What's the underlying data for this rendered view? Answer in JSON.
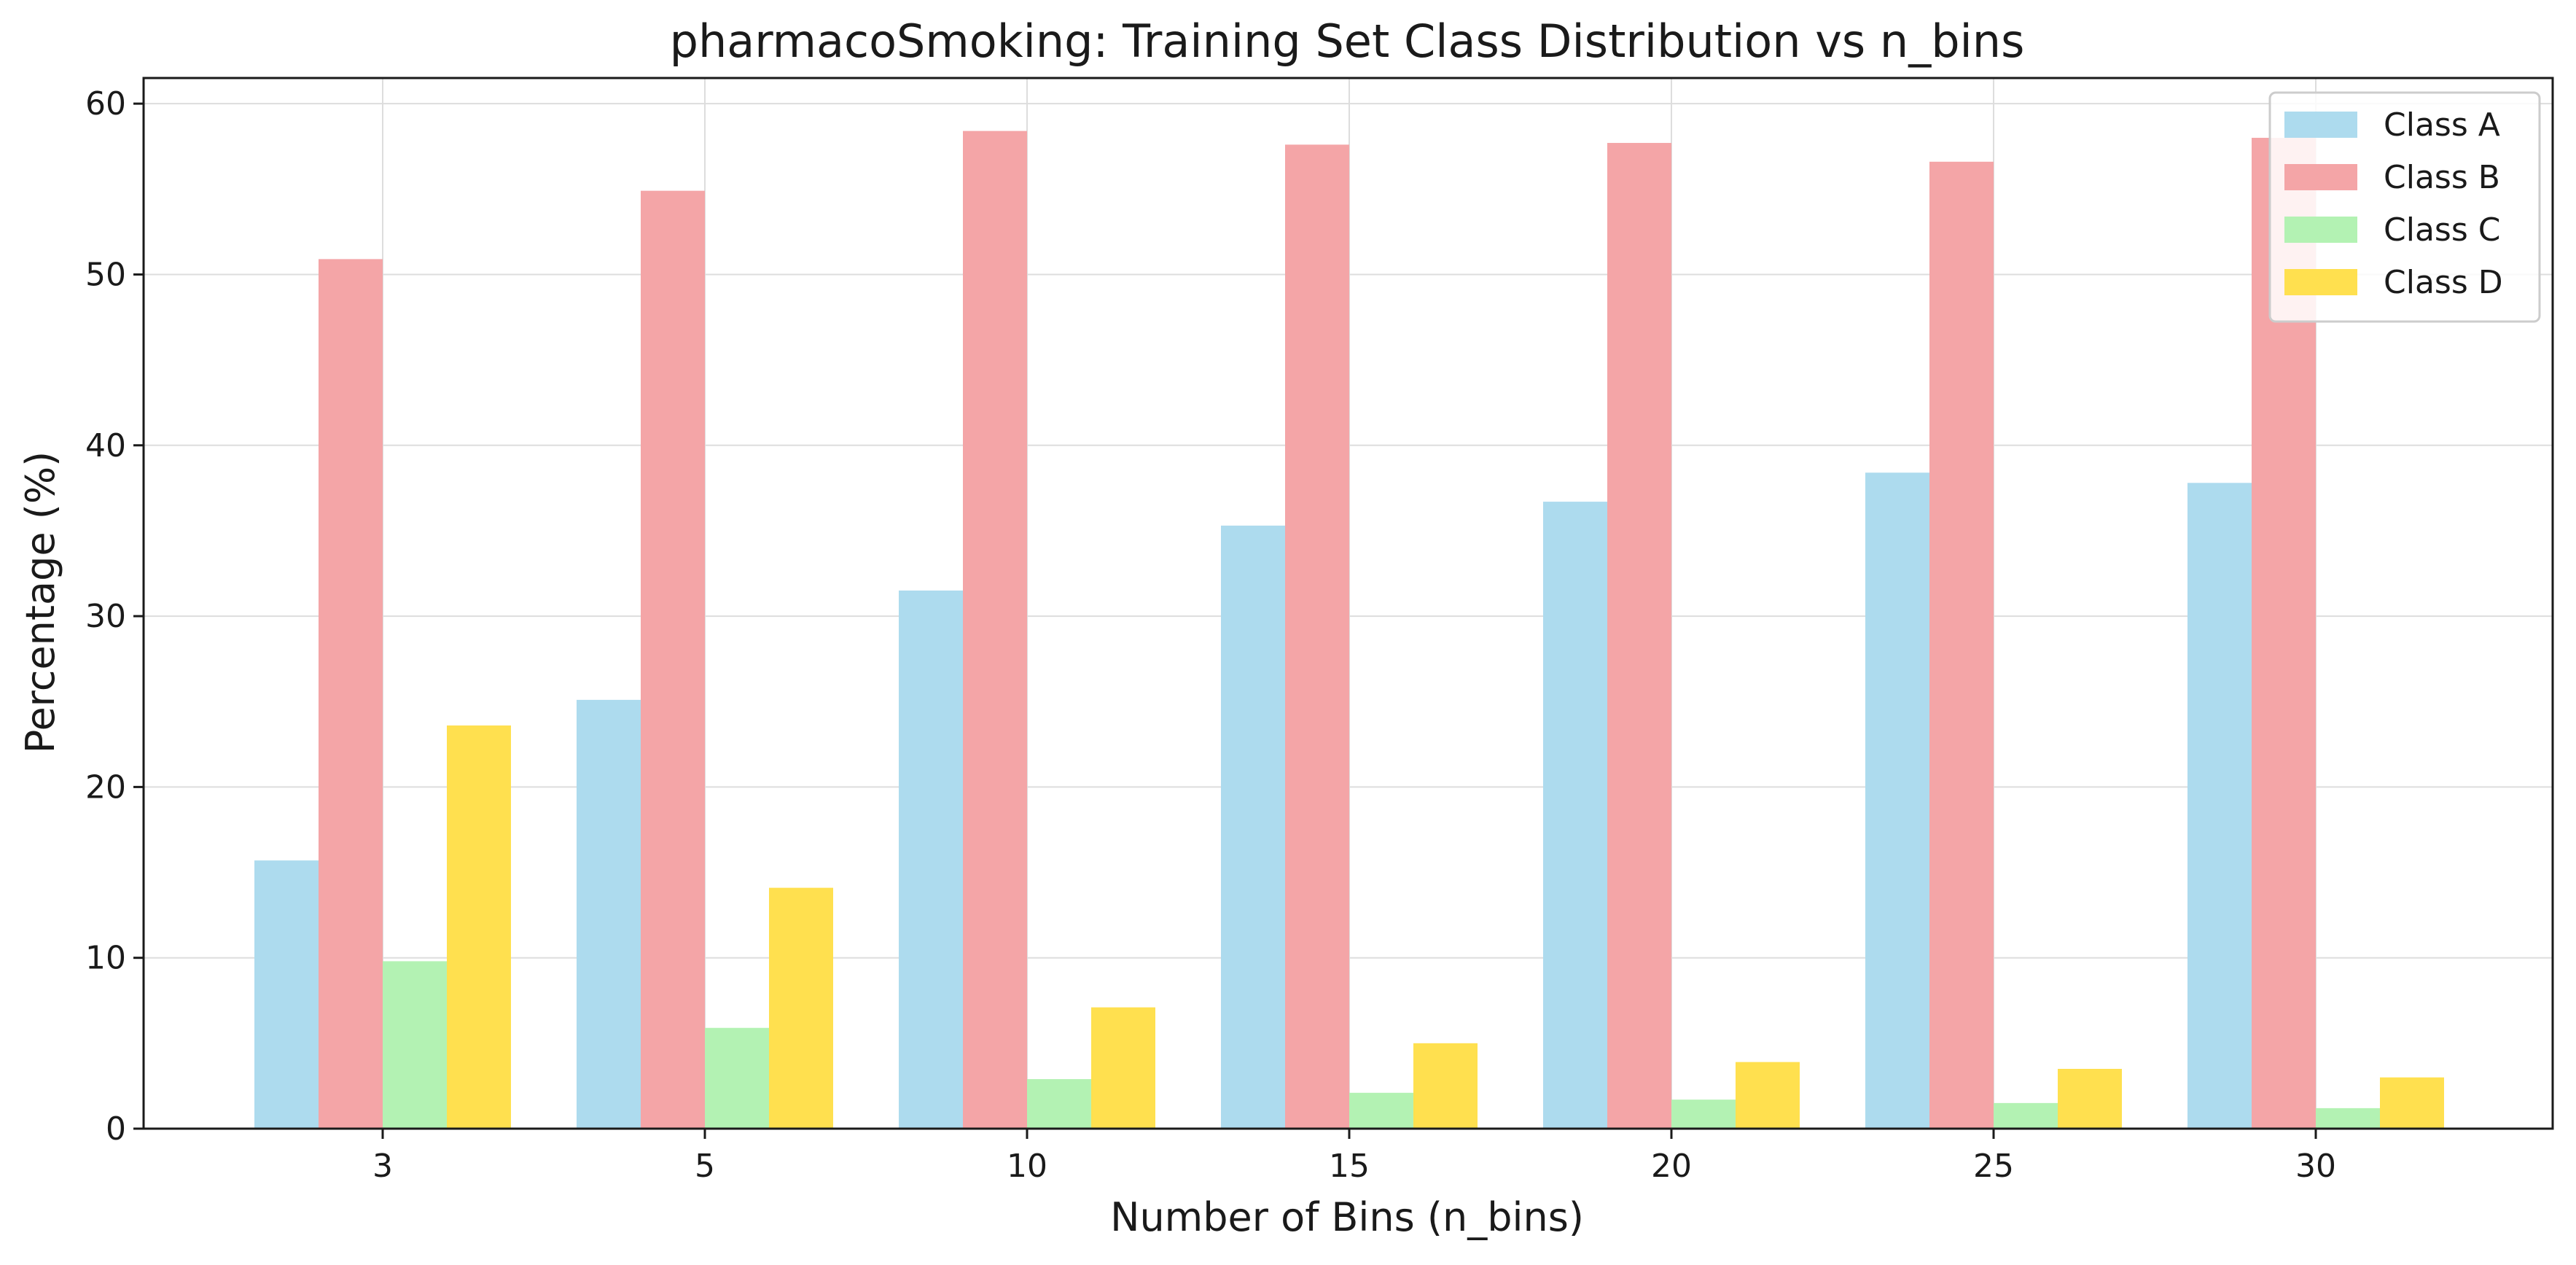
{
  "chart_data": {
    "type": "bar",
    "title": "pharmacoSmoking: Training Set Class Distribution vs n_bins",
    "xlabel": "Number of Bins (n_bins)",
    "ylabel": "Percentage (%)",
    "categories": [
      "3",
      "5",
      "10",
      "15",
      "20",
      "25",
      "30"
    ],
    "ylim": [
      0,
      61.5
    ],
    "yticks": [
      "0",
      "10",
      "20",
      "30",
      "40",
      "50",
      "60"
    ],
    "grid": true,
    "legend_position": "top-right",
    "series": [
      {
        "name": "Class A",
        "color": "#ADDBEE",
        "values": [
          15.7,
          25.1,
          31.5,
          35.3,
          36.7,
          38.4,
          37.8
        ]
      },
      {
        "name": "Class B",
        "color": "#F4A5A7",
        "values": [
          50.9,
          54.9,
          58.4,
          57.6,
          57.7,
          56.6,
          58.0
        ]
      },
      {
        "name": "Class C",
        "color": "#B3F2B3",
        "values": [
          9.8,
          5.9,
          2.9,
          2.1,
          1.7,
          1.5,
          1.2
        ]
      },
      {
        "name": "Class D",
        "color": "#FFE04F",
        "values": [
          23.6,
          14.1,
          7.1,
          5.0,
          3.9,
          3.5,
          3.0
        ]
      }
    ]
  }
}
